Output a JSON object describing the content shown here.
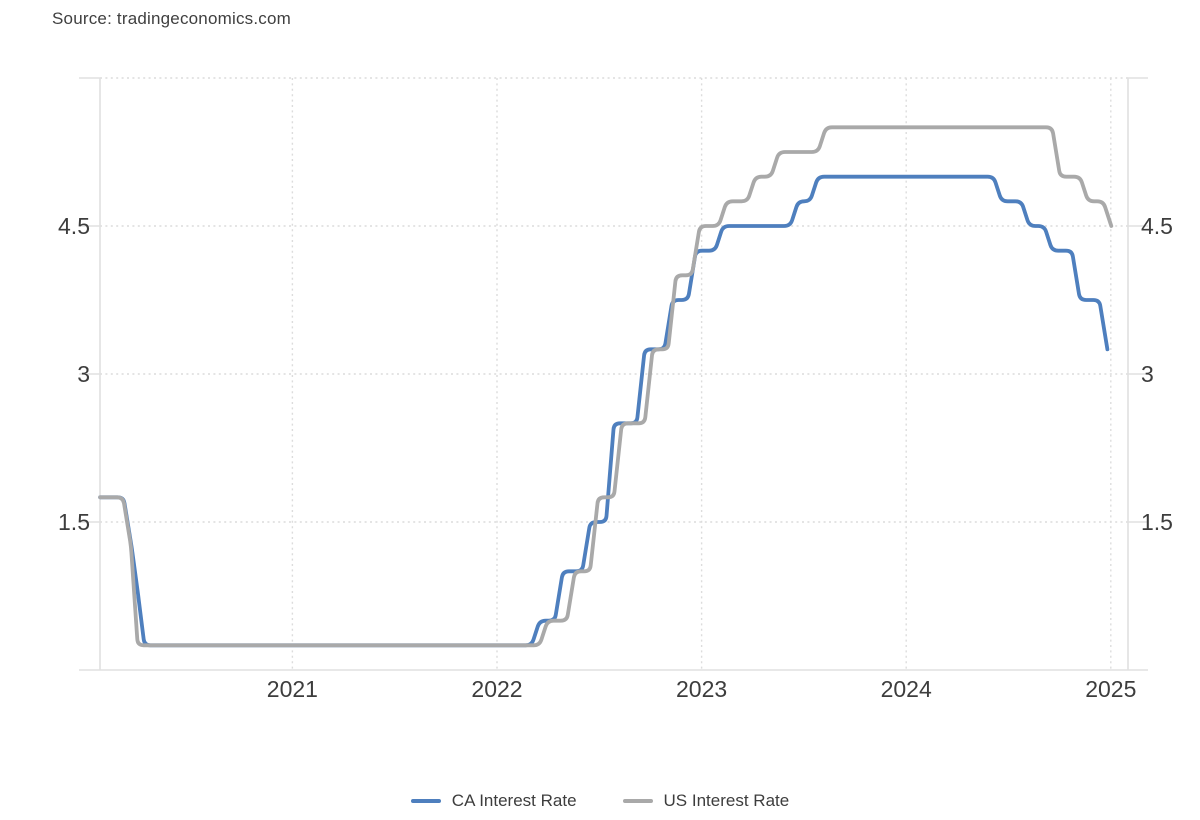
{
  "source_text": "Source: tradingeconomics.com",
  "colors": {
    "ca_line": "#4e7fbe",
    "us_line": "#a9a9a9",
    "axis_solid": "#e0e0e0",
    "grid_dotted": "#dcdcdc",
    "label_text": "#3d3d3d",
    "source_text": "#3f3f3f"
  },
  "legend": {
    "items": [
      {
        "id": "ca",
        "label": "CA Interest Rate"
      },
      {
        "id": "us",
        "label": "US Interest Rate"
      }
    ]
  },
  "chart_data": {
    "type": "line",
    "title": "",
    "xlabel": "",
    "ylabel": "",
    "x_axis": {
      "ticks": [
        2021,
        2022,
        2023,
        2024,
        2025
      ],
      "tick_labels": [
        "2021",
        "2022",
        "2023",
        "2024",
        "2025"
      ],
      "range_yearfrac": [
        2020.06,
        2025.08
      ]
    },
    "y_axis": {
      "ticks": [
        1.5,
        3,
        4.5,
        6
      ],
      "tick_labels": [
        "1.5",
        "3",
        "4.5",
        ""
      ],
      "labeled_both_sides": true,
      "ylim": [
        0,
        6
      ]
    },
    "grid": {
      "horizontal_dotted": true,
      "vertical_dotted": true
    },
    "legend_position": "bottom",
    "series": [
      {
        "name": "CA Interest Rate",
        "color_key": "ca_line",
        "unit": "percent",
        "points": [
          [
            "2020-01-23",
            1.75
          ],
          [
            "2020-03-04",
            1.25
          ],
          [
            "2020-03-16",
            0.75
          ],
          [
            "2020-03-27",
            0.25
          ],
          [
            "2022-03-02",
            0.5
          ],
          [
            "2022-04-13",
            1.0
          ],
          [
            "2022-06-01",
            1.5
          ],
          [
            "2022-07-13",
            2.5
          ],
          [
            "2022-09-07",
            3.25
          ],
          [
            "2022-10-26",
            3.75
          ],
          [
            "2022-12-07",
            4.25
          ],
          [
            "2023-01-25",
            4.5
          ],
          [
            "2023-06-07",
            4.75
          ],
          [
            "2023-07-12",
            5.0
          ],
          [
            "2024-06-05",
            4.75
          ],
          [
            "2024-07-24",
            4.5
          ],
          [
            "2024-09-04",
            4.25
          ],
          [
            "2024-10-23",
            3.75
          ],
          [
            "2024-12-11",
            3.25
          ],
          [
            "2024-12-20",
            3.25
          ]
        ]
      },
      {
        "name": "US Interest Rate",
        "color_key": "us_line",
        "unit": "percent",
        "points": [
          [
            "2020-01-23",
            1.75
          ],
          [
            "2020-03-03",
            1.25
          ],
          [
            "2020-03-15",
            0.25
          ],
          [
            "2022-03-16",
            0.5
          ],
          [
            "2022-05-04",
            1.0
          ],
          [
            "2022-06-15",
            1.75
          ],
          [
            "2022-07-27",
            2.5
          ],
          [
            "2022-09-21",
            3.25
          ],
          [
            "2022-11-02",
            4.0
          ],
          [
            "2022-12-14",
            4.5
          ],
          [
            "2023-02-01",
            4.75
          ],
          [
            "2023-03-22",
            5.0
          ],
          [
            "2023-05-03",
            5.25
          ],
          [
            "2023-07-26",
            5.5
          ],
          [
            "2024-09-18",
            5.0
          ],
          [
            "2024-11-07",
            4.75
          ],
          [
            "2024-12-18",
            4.5
          ],
          [
            "2024-12-20",
            4.5
          ]
        ]
      }
    ]
  }
}
